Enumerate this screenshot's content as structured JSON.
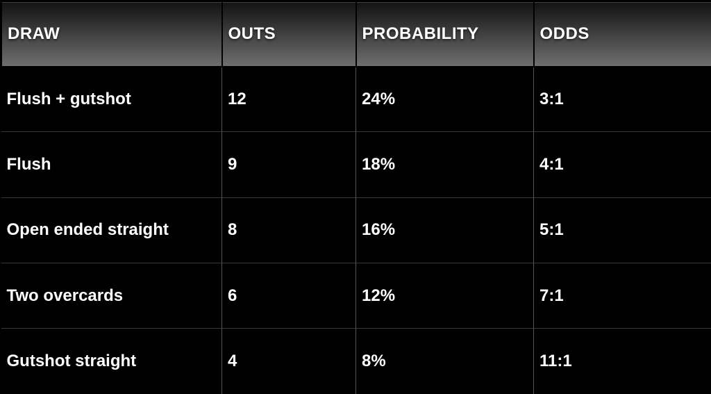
{
  "chart_data": {
    "type": "table",
    "columns": [
      "DRAW",
      "OUTS",
      "PROBABILITY",
      "ODDS"
    ],
    "rows": [
      [
        "Flush + gutshot",
        "12",
        "24%",
        "3:1"
      ],
      [
        "Flush",
        "9",
        "18%",
        "4:1"
      ],
      [
        "Open ended straight",
        "8",
        "16%",
        "5:1"
      ],
      [
        "Two overcards",
        "6",
        "12%",
        "7:1"
      ],
      [
        "Gutshot straight",
        "4",
        "8%",
        "11:1"
      ]
    ],
    "layout_hints": {
      "header_style": "gradient gray, all caps, left aligned",
      "grid": "thin gray inner borders on black background"
    }
  },
  "colors": {
    "background": "#000000",
    "header_gradient_top": "#1a1a1a",
    "header_gradient_bottom": "#6f6f6f",
    "grid_vertical": "#555555",
    "grid_horizontal": "#3a3a3a",
    "text": "#ffffff"
  }
}
